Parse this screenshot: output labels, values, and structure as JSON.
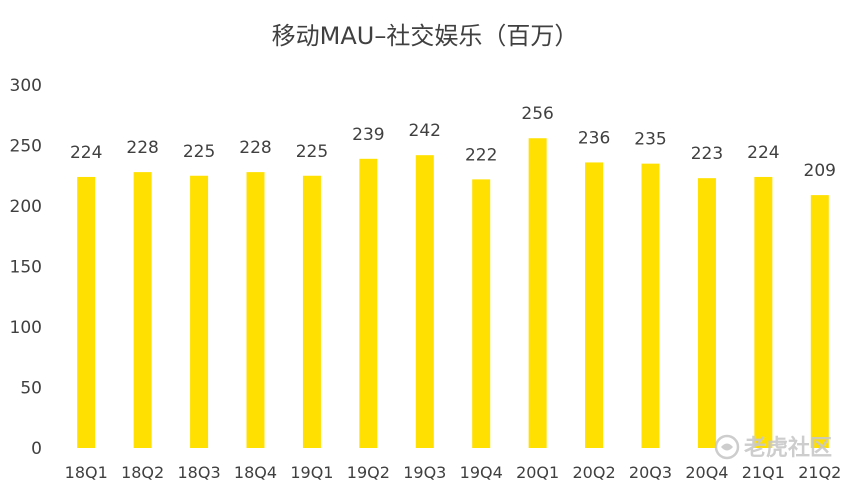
{
  "chart_data": {
    "type": "bar",
    "title": "移动MAU–社交娱乐（百万）",
    "xlabel": "",
    "ylabel": "",
    "categories": [
      "18Q1",
      "18Q2",
      "18Q3",
      "18Q4",
      "19Q1",
      "19Q2",
      "19Q3",
      "19Q4",
      "20Q1",
      "20Q2",
      "20Q3",
      "20Q4",
      "21Q1",
      "21Q2"
    ],
    "values": [
      224,
      228,
      225,
      228,
      225,
      239,
      242,
      222,
      256,
      236,
      235,
      223,
      224,
      209
    ],
    "ylim": [
      0,
      300
    ],
    "yticks": [
      0,
      50,
      100,
      150,
      200,
      250,
      300
    ],
    "grid": false,
    "legend": "none",
    "bar_color": "#FFE000",
    "text_color": "#404040"
  },
  "watermark": {
    "text": "老虎社区"
  }
}
